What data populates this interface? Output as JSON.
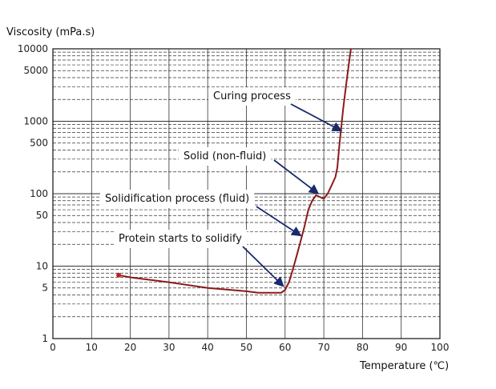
{
  "chart_data": {
    "type": "line",
    "xlabel": "Temperature (℃)",
    "ylabel": "Viscosity (mPa.s)",
    "x_scale": "linear",
    "y_scale": "log",
    "xlim": [
      0,
      100
    ],
    "ylim": [
      1,
      10000
    ],
    "x_ticks": [
      "0",
      "10",
      "20",
      "30",
      "40",
      "50",
      "60",
      "70",
      "80",
      "90",
      "100"
    ],
    "y_ticks": [
      {
        "value": 1,
        "label": "1"
      },
      {
        "value": 5,
        "label": "5"
      },
      {
        "value": 10,
        "label": "10"
      },
      {
        "value": 50,
        "label": "50"
      },
      {
        "value": 100,
        "label": "100"
      },
      {
        "value": 500,
        "label": "500"
      },
      {
        "value": 1000,
        "label": "1000"
      },
      {
        "value": 5000,
        "label": "5000"
      },
      {
        "value": 10000,
        "label": "10000"
      }
    ],
    "grid": true,
    "series": [
      {
        "color": "#8b1a1a",
        "x": [
          17,
          20,
          30,
          40,
          50,
          53,
          59,
          60,
          61,
          62,
          63,
          64,
          65,
          66,
          67,
          68,
          69,
          70,
          71,
          72,
          73,
          73.5,
          74,
          75,
          76,
          77
        ],
        "y": [
          7.5,
          7,
          6,
          5,
          4.5,
          4.3,
          4.3,
          4.7,
          6,
          9,
          14,
          22,
          35,
          60,
          80,
          95,
          90,
          85,
          100,
          130,
          170,
          230,
          450,
          1500,
          4000,
          10000
        ]
      }
    ],
    "annotations": [
      {
        "text": "Curing process",
        "x": 75,
        "y": 700
      },
      {
        "text": "Solid (non-fluid)",
        "x": 69,
        "y": 95
      },
      {
        "text": "Solidification process (fluid)",
        "x": 64.5,
        "y": 25
      },
      {
        "text": "Protein starts to solidify",
        "x": 60,
        "y": 5
      }
    ]
  }
}
